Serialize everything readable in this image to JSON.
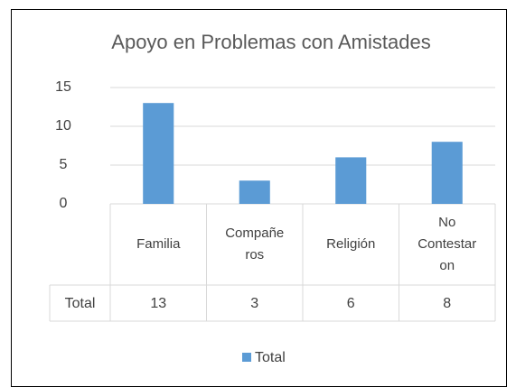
{
  "chart_data": {
    "type": "bar",
    "title": "Apoyo en Problemas con Amistades",
    "categories": [
      "Familia",
      "Compañeros",
      "Religión",
      "No Contestaron"
    ],
    "series": [
      {
        "name": "Total",
        "color": "#5b9bd5",
        "values": [
          13,
          3,
          6,
          8
        ]
      }
    ],
    "ylim": [
      0,
      15
    ],
    "yticks": [
      0,
      5,
      10,
      15
    ],
    "grid": true,
    "data_table": true,
    "legend": "bottom"
  }
}
